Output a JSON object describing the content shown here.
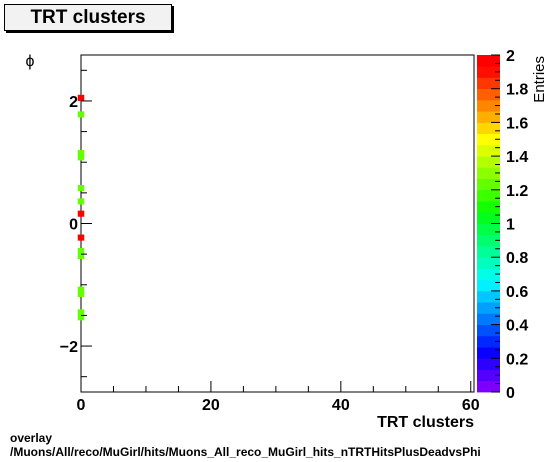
{
  "chart_data": {
    "type": "heatmap",
    "title": "TRT clusters",
    "xlabel": "TRT clusters",
    "ylabel": "ϕ",
    "zlabel": "Entries",
    "xlim": [
      0,
      60.5
    ],
    "ylim": [
      -2.75,
      2.75
    ],
    "zlim": [
      0,
      2
    ],
    "x_ticks": [
      "0",
      "20",
      "40",
      "60"
    ],
    "y_ticks": [
      "−2",
      "0",
      "2"
    ],
    "z_ticks": [
      "0",
      "0.2",
      "0.4",
      "0.6",
      "0.8",
      "1",
      "1.2",
      "1.4",
      "1.6",
      "1.8",
      "2"
    ],
    "bin_width_x": 1,
    "bin_height_y": 0.1,
    "cells": [
      {
        "x": 0,
        "y": 2.05,
        "z": 2
      },
      {
        "x": 0,
        "y": 1.78,
        "z": 1.2
      },
      {
        "x": 0,
        "y": 1.15,
        "z": 1.2
      },
      {
        "x": 0,
        "y": 1.08,
        "z": 1.2
      },
      {
        "x": 0,
        "y": 0.58,
        "z": 1.2
      },
      {
        "x": 0,
        "y": 0.36,
        "z": 1.2
      },
      {
        "x": 0,
        "y": 0.16,
        "z": 2
      },
      {
        "x": 0,
        "y": -0.23,
        "z": 2
      },
      {
        "x": 0,
        "y": -0.45,
        "z": 1.2
      },
      {
        "x": 0,
        "y": -0.53,
        "z": 1.2
      },
      {
        "x": 0,
        "y": -1.08,
        "z": 1.2
      },
      {
        "x": 0,
        "y": -1.15,
        "z": 1.2
      },
      {
        "x": 0,
        "y": -1.45,
        "z": 1.2
      },
      {
        "x": 0,
        "y": -1.53,
        "z": 1.2
      }
    ],
    "palette": [
      "#7d00ff",
      "#5500ff",
      "#2d00ff",
      "#0a00ff",
      "#0028ff",
      "#0050ff",
      "#0078ff",
      "#00a0ff",
      "#00c8ff",
      "#00f0ff",
      "#00ffe6",
      "#00ffbe",
      "#00ff96",
      "#00ff6e",
      "#00ff46",
      "#00ff1e",
      "#14ff00",
      "#3cff00",
      "#64ff00",
      "#8cff00",
      "#b4ff00",
      "#dcff00",
      "#ffff00",
      "#ffd700",
      "#ffaf00",
      "#ff8700",
      "#ff5f00",
      "#ff3700",
      "#ff0f00",
      "#ff0000"
    ]
  },
  "footer": {
    "line1": "overlay",
    "line2": "/Muons/All/reco/MuGirl/hits/Muons_All_reco_MuGirl_hits_nTRTHitsPlusDeadvsPhi"
  }
}
